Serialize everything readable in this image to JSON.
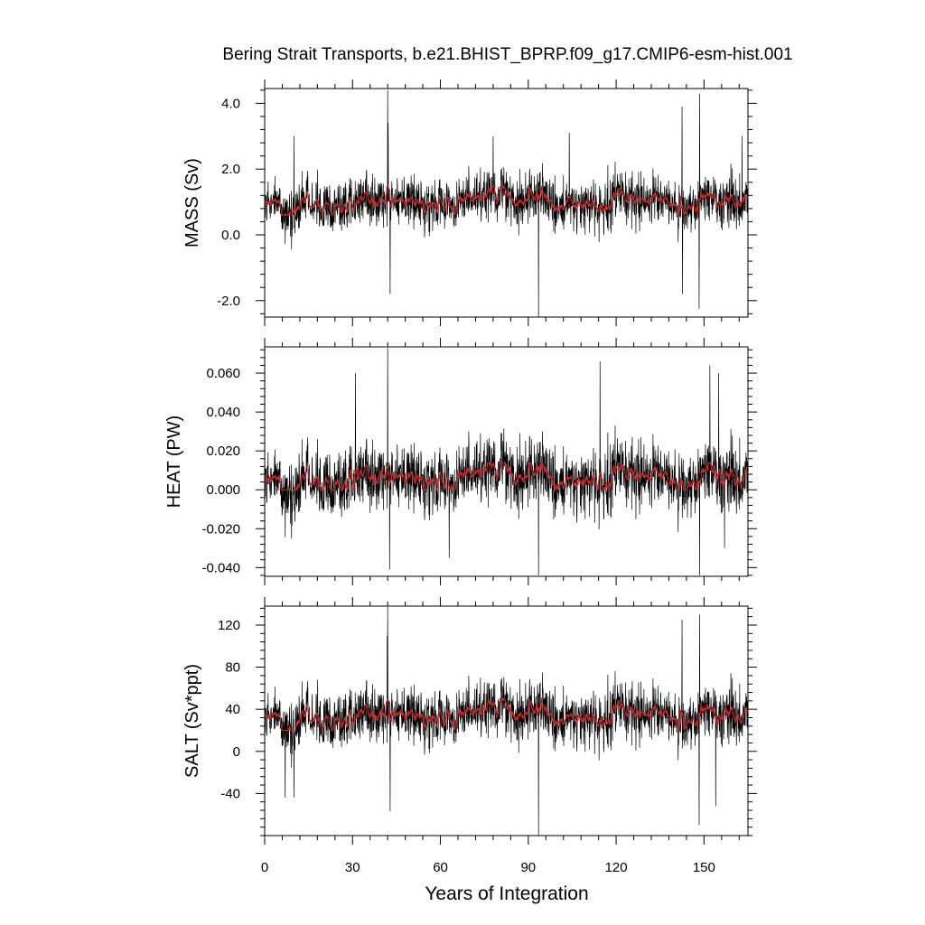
{
  "title": "Bering Strait Transports, b.e21.BHIST_BPRP.f09_g17.CMIP6-esm-hist.001",
  "xlabel": "Years of Integration",
  "colors": {
    "raw": "#000000",
    "smoothed": "#d62728",
    "frame": "#000000"
  },
  "chart_data": [
    {
      "type": "line",
      "panel": "MASS",
      "ylabel": "MASS (Sv)",
      "xlim": [
        0,
        165
      ],
      "ylim": [
        -2.5,
        4.45
      ],
      "yticks": [
        -2.0,
        0.0,
        2.0,
        4.0
      ],
      "yticklabels": [
        "-2.0",
        "0.0",
        "2.0",
        "4.0"
      ],
      "xticks": [
        0,
        30,
        60,
        90,
        120,
        150
      ],
      "mean": 1.0,
      "spread": 0.55,
      "series": [
        {
          "kind": "raw",
          "description": "monthly values, approx. 1980 points"
        },
        {
          "kind": "smoothed",
          "description": "annual running mean",
          "range": [
            0.6,
            1.5
          ]
        }
      ],
      "extremes": [
        {
          "x": 42,
          "y": 4.4
        },
        {
          "x": 42.2,
          "y": 3.4
        },
        {
          "x": 93.5,
          "y": -2.5
        },
        {
          "x": 148.5,
          "y": 4.3
        },
        {
          "x": 142.5,
          "y": 3.9
        },
        {
          "x": 148.3,
          "y": -2.25
        },
        {
          "x": 42.8,
          "y": -1.8
        },
        {
          "x": 142.7,
          "y": -1.8
        },
        {
          "x": 10,
          "y": 3.0
        },
        {
          "x": 78,
          "y": 3.0
        },
        {
          "x": 104,
          "y": 3.1
        },
        {
          "x": 163,
          "y": 3.0
        }
      ]
    },
    {
      "type": "line",
      "panel": "HEAT",
      "ylabel": "HEAT (PW)",
      "xlim": [
        0,
        165
      ],
      "ylim": [
        -0.0445,
        0.0735
      ],
      "yticks": [
        -0.04,
        -0.02,
        0.0,
        0.02,
        0.04,
        0.06
      ],
      "yticklabels": [
        "-0.040",
        "-0.020",
        "0.000",
        "0.020",
        "0.040",
        "0.060"
      ],
      "xticks": [
        0,
        30,
        60,
        90,
        120,
        150
      ],
      "mean": 0.006,
      "spread": 0.012,
      "series": [
        {
          "kind": "raw",
          "description": "monthly values, approx. 1980 points"
        },
        {
          "kind": "smoothed",
          "description": "annual running mean",
          "range": [
            0.0,
            0.014
          ]
        }
      ],
      "extremes": [
        {
          "x": 42,
          "y": 0.073
        },
        {
          "x": 42.7,
          "y": -0.041
        },
        {
          "x": 93.5,
          "y": -0.044
        },
        {
          "x": 148.5,
          "y": -0.044
        },
        {
          "x": 152,
          "y": 0.064
        },
        {
          "x": 155,
          "y": 0.06
        },
        {
          "x": 31,
          "y": 0.06
        },
        {
          "x": 114.5,
          "y": 0.066
        },
        {
          "x": 63,
          "y": -0.035
        },
        {
          "x": 157,
          "y": -0.03
        }
      ]
    },
    {
      "type": "line",
      "panel": "SALT",
      "ylabel": "SALT (Sv*ppt)",
      "xlim": [
        0,
        165
      ],
      "ylim": [
        -80,
        138
      ],
      "yticks": [
        -40,
        0,
        40,
        80,
        120
      ],
      "yticklabels": [
        "-40",
        "0",
        "40",
        "80",
        "120"
      ],
      "xticks": [
        0,
        30,
        60,
        90,
        120,
        150
      ],
      "xticklabels": [
        "0",
        "30",
        "60",
        "90",
        "120",
        "150"
      ],
      "mean": 34,
      "spread": 19,
      "series": [
        {
          "kind": "raw",
          "description": "monthly values, approx. 1980 points"
        },
        {
          "kind": "smoothed",
          "description": "annual running mean",
          "range": [
            20,
            50
          ]
        }
      ],
      "extremes": [
        {
          "x": 42,
          "y": 137
        },
        {
          "x": 41.8,
          "y": 110
        },
        {
          "x": 93.5,
          "y": -80
        },
        {
          "x": 148.5,
          "y": 130
        },
        {
          "x": 142.5,
          "y": 125
        },
        {
          "x": 148.3,
          "y": -70
        },
        {
          "x": 42.8,
          "y": -57
        },
        {
          "x": 10,
          "y": -44
        },
        {
          "x": 7,
          "y": -44
        },
        {
          "x": 154,
          "y": -52
        }
      ]
    }
  ]
}
